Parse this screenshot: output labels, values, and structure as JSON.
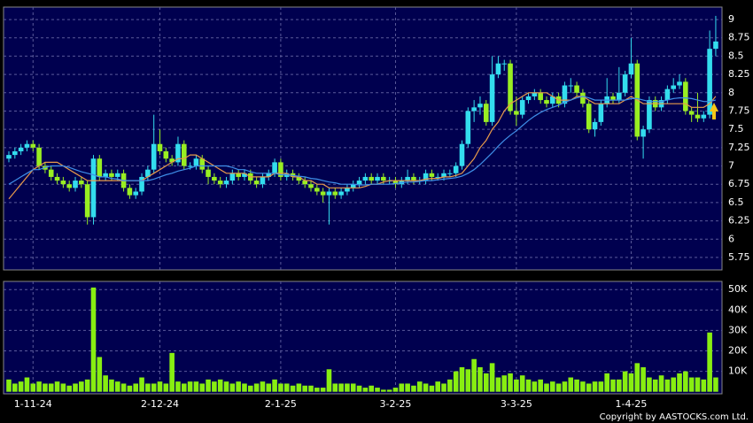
{
  "chart_data": [
    {
      "type": "candlestick",
      "categories": [
        null,
        null,
        null,
        null,
        "1-11-24",
        null,
        null,
        null,
        null,
        null,
        null,
        null,
        null,
        null,
        null,
        null,
        null,
        null,
        null,
        null,
        null,
        null,
        null,
        null,
        null,
        "2-12-24",
        null,
        null,
        null,
        null,
        null,
        null,
        null,
        null,
        null,
        null,
        null,
        null,
        null,
        null,
        null,
        null,
        null,
        null,
        null,
        "2-1-25",
        null,
        null,
        null,
        null,
        null,
        null,
        null,
        null,
        null,
        null,
        null,
        null,
        null,
        null,
        null,
        null,
        null,
        null,
        "3-2-25",
        null,
        null,
        null,
        null,
        null,
        null,
        null,
        null,
        null,
        null,
        null,
        null,
        null,
        null,
        null,
        null,
        null,
        null,
        null,
        "3-3-25",
        null,
        null,
        null,
        null,
        null,
        null,
        null,
        null,
        null,
        null,
        null,
        null,
        null,
        null,
        null,
        null,
        null,
        null,
        "1-4-25",
        null,
        null,
        null,
        null,
        null,
        null,
        null,
        null,
        null,
        null,
        null,
        null,
        null,
        null
      ],
      "open": [
        7.1,
        7.15,
        7.2,
        7.25,
        7.3,
        7.25,
        7.0,
        6.95,
        6.85,
        6.8,
        6.75,
        6.7,
        6.8,
        6.75,
        6.3,
        7.1,
        6.85,
        6.9,
        6.85,
        6.9,
        6.7,
        6.6,
        6.65,
        6.85,
        6.95,
        7.3,
        7.2,
        7.1,
        7.05,
        7.3,
        7.0,
        7.0,
        7.1,
        6.95,
        6.85,
        6.8,
        6.75,
        6.8,
        6.9,
        6.85,
        6.9,
        6.8,
        6.75,
        6.85,
        6.9,
        7.05,
        6.85,
        6.9,
        6.85,
        6.8,
        6.75,
        6.7,
        6.65,
        6.6,
        6.65,
        6.6,
        6.65,
        6.7,
        6.75,
        6.8,
        6.85,
        6.8,
        6.85,
        6.8,
        6.8,
        6.75,
        6.8,
        6.85,
        6.8,
        6.8,
        6.9,
        6.85,
        6.85,
        6.9,
        6.9,
        7.0,
        7.3,
        7.75,
        7.8,
        7.85,
        7.6,
        8.25,
        8.4,
        8.4,
        7.75,
        7.7,
        7.9,
        7.95,
        8.0,
        7.9,
        7.85,
        7.95,
        7.85,
        8.1,
        8.1,
        8.0,
        7.85,
        7.5,
        7.6,
        7.85,
        7.95,
        7.9,
        8.0,
        8.25,
        8.4,
        7.4,
        7.5,
        7.9,
        7.8,
        7.9,
        8.05,
        8.1,
        8.15,
        7.75,
        7.7,
        7.65,
        7.7,
        8.6
      ],
      "high": [
        7.2,
        7.25,
        7.3,
        7.35,
        7.35,
        7.3,
        7.05,
        7.0,
        6.9,
        6.85,
        6.8,
        6.85,
        6.85,
        6.8,
        7.15,
        7.15,
        6.95,
        6.95,
        6.95,
        6.95,
        6.75,
        6.7,
        6.9,
        7.0,
        7.7,
        7.5,
        7.25,
        7.15,
        7.4,
        7.35,
        7.05,
        7.15,
        7.15,
        7.0,
        6.9,
        6.85,
        6.85,
        6.95,
        6.95,
        6.95,
        6.95,
        6.85,
        6.9,
        6.95,
        7.1,
        7.1,
        6.95,
        6.95,
        6.9,
        6.85,
        6.8,
        6.75,
        6.7,
        6.7,
        6.7,
        6.7,
        6.75,
        6.8,
        6.85,
        6.9,
        6.9,
        6.9,
        6.9,
        6.85,
        6.85,
        6.85,
        6.95,
        6.9,
        6.85,
        6.95,
        6.95,
        6.9,
        6.95,
        6.95,
        7.05,
        7.35,
        7.8,
        7.9,
        7.95,
        7.9,
        8.5,
        8.5,
        8.45,
        8.45,
        7.95,
        7.95,
        8.0,
        8.05,
        8.05,
        7.95,
        8.0,
        8.0,
        8.15,
        8.2,
        8.15,
        8.05,
        7.9,
        7.65,
        7.9,
        8.2,
        8.0,
        8.35,
        8.3,
        8.75,
        8.45,
        7.55,
        7.95,
        7.95,
        7.95,
        8.1,
        8.2,
        8.25,
        8.2,
        7.8,
        8.0,
        7.75,
        8.85,
        9.05
      ],
      "low": [
        7.05,
        7.1,
        7.15,
        7.2,
        7.2,
        6.95,
        6.9,
        6.8,
        6.75,
        6.7,
        6.65,
        6.65,
        6.7,
        6.2,
        6.2,
        6.8,
        6.8,
        6.8,
        6.8,
        6.65,
        6.55,
        6.55,
        6.6,
        6.8,
        6.9,
        7.15,
        7.05,
        7.0,
        7.0,
        6.95,
        6.95,
        6.95,
        6.9,
        6.75,
        6.75,
        6.7,
        6.7,
        6.75,
        6.8,
        6.8,
        6.75,
        6.7,
        6.7,
        6.8,
        6.85,
        6.8,
        6.8,
        6.8,
        6.75,
        6.7,
        6.65,
        6.6,
        6.5,
        6.2,
        6.55,
        6.55,
        6.6,
        6.65,
        6.7,
        6.75,
        6.75,
        6.75,
        6.75,
        6.75,
        6.7,
        6.7,
        6.75,
        6.75,
        6.75,
        6.75,
        6.8,
        6.8,
        6.8,
        6.85,
        6.85,
        6.95,
        7.25,
        7.6,
        7.7,
        7.55,
        7.55,
        8.2,
        8.3,
        7.7,
        7.55,
        7.65,
        7.85,
        7.9,
        7.85,
        7.8,
        7.8,
        7.8,
        7.8,
        8.0,
        7.95,
        7.8,
        7.45,
        7.4,
        7.55,
        7.8,
        7.85,
        7.85,
        7.95,
        8.2,
        7.35,
        7.1,
        7.45,
        7.75,
        7.75,
        7.85,
        8.0,
        8.05,
        7.7,
        7.6,
        7.6,
        7.6,
        7.65,
        8.5
      ],
      "close": [
        7.15,
        7.2,
        7.25,
        7.3,
        7.25,
        7.0,
        6.95,
        6.85,
        6.8,
        6.75,
        6.7,
        6.8,
        6.75,
        6.3,
        7.1,
        6.85,
        6.9,
        6.85,
        6.9,
        6.7,
        6.6,
        6.65,
        6.85,
        6.95,
        7.3,
        7.2,
        7.1,
        7.05,
        7.3,
        7.0,
        7.0,
        7.1,
        6.95,
        6.85,
        6.8,
        6.75,
        6.8,
        6.9,
        6.85,
        6.9,
        6.8,
        6.75,
        6.85,
        6.9,
        7.05,
        6.85,
        6.9,
        6.85,
        6.8,
        6.75,
        6.7,
        6.65,
        6.6,
        6.65,
        6.6,
        6.65,
        6.7,
        6.75,
        6.8,
        6.85,
        6.8,
        6.85,
        6.8,
        6.8,
        6.75,
        6.8,
        6.85,
        6.8,
        6.8,
        6.9,
        6.85,
        6.85,
        6.9,
        6.9,
        7.0,
        7.3,
        7.75,
        7.8,
        7.85,
        7.6,
        8.25,
        8.4,
        8.4,
        7.75,
        7.7,
        7.9,
        7.95,
        8.0,
        7.9,
        7.85,
        7.95,
        7.85,
        8.1,
        8.1,
        8.0,
        7.85,
        7.5,
        7.6,
        7.85,
        7.95,
        7.9,
        8.0,
        8.25,
        8.4,
        7.4,
        7.5,
        7.9,
        7.8,
        7.9,
        8.05,
        8.1,
        8.15,
        7.75,
        7.7,
        7.65,
        7.7,
        8.6,
        8.7
      ],
      "up_color": "#33ddee",
      "down_color": "#99ee22",
      "series": [
        {
          "color": "#e89a4a",
          "values": [
            6.55,
            6.65,
            6.75,
            6.85,
            6.95,
            7.0,
            7.05,
            7.05,
            7.05,
            7.0,
            6.95,
            6.9,
            6.85,
            6.8,
            6.8,
            6.8,
            6.8,
            6.8,
            6.8,
            6.8,
            6.8,
            6.8,
            6.8,
            6.85,
            6.9,
            6.95,
            7.0,
            7.05,
            7.1,
            7.1,
            7.15,
            7.15,
            7.1,
            7.05,
            7.0,
            6.95,
            6.9,
            6.9,
            6.9,
            6.9,
            6.85,
            6.85,
            6.85,
            6.85,
            6.9,
            6.9,
            6.9,
            6.85,
            6.85,
            6.8,
            6.8,
            6.75,
            6.75,
            6.7,
            6.7,
            6.7,
            6.7,
            6.7,
            6.7,
            6.72,
            6.75,
            6.75,
            6.78,
            6.8,
            6.8,
            6.8,
            6.8,
            6.8,
            6.8,
            6.82,
            6.83,
            6.83,
            6.85,
            6.85,
            6.87,
            6.9,
            7.0,
            7.1,
            7.25,
            7.35,
            7.5,
            7.6,
            7.75,
            7.85,
            7.9,
            7.95,
            8.0,
            8.0,
            8.0,
            8.0,
            7.95,
            7.9,
            7.9,
            7.9,
            7.95,
            7.95,
            7.9,
            7.85,
            7.85,
            7.85,
            7.85,
            7.85,
            7.9,
            7.95,
            7.9,
            7.85,
            7.85,
            7.85,
            7.85,
            7.85,
            7.85,
            7.85,
            7.85,
            7.8,
            7.8,
            7.8,
            7.85,
            7.95
          ]
        },
        {
          "color": "#3f8fe8",
          "values": [
            6.75,
            6.8,
            6.85,
            6.9,
            6.95,
            6.95,
            6.98,
            7.0,
            7.0,
            7.0,
            6.98,
            6.95,
            6.92,
            6.9,
            6.88,
            6.85,
            6.85,
            6.83,
            6.82,
            6.8,
            6.8,
            6.8,
            6.8,
            6.8,
            6.82,
            6.85,
            6.88,
            6.9,
            6.93,
            6.95,
            6.97,
            7.0,
            7.0,
            7.0,
            7.0,
            7.0,
            7.0,
            6.98,
            6.95,
            6.95,
            6.92,
            6.9,
            6.9,
            6.9,
            6.9,
            6.88,
            6.88,
            6.87,
            6.86,
            6.85,
            6.83,
            6.82,
            6.8,
            6.78,
            6.77,
            6.75,
            6.75,
            6.75,
            6.74,
            6.74,
            6.75,
            6.75,
            6.75,
            6.75,
            6.76,
            6.77,
            6.78,
            6.78,
            6.79,
            6.8,
            6.8,
            6.81,
            6.82,
            6.83,
            6.84,
            6.86,
            6.9,
            6.95,
            7.02,
            7.1,
            7.18,
            7.27,
            7.35,
            7.42,
            7.48,
            7.55,
            7.62,
            7.68,
            7.73,
            7.77,
            7.8,
            7.83,
            7.87,
            7.9,
            7.93,
            7.95,
            7.93,
            7.9,
            7.9,
            7.9,
            7.9,
            7.9,
            7.9,
            7.92,
            7.92,
            7.9,
            7.88,
            7.88,
            7.88,
            7.9,
            7.92,
            7.93,
            7.93,
            7.92,
            7.9,
            7.88,
            7.88,
            7.9
          ]
        }
      ],
      "ylim": [
        5.58,
        9.17
      ],
      "yticks": [
        5.75,
        6,
        6.25,
        6.5,
        6.75,
        7,
        7.25,
        7.5,
        7.75,
        8,
        8.25,
        8.5,
        8.75,
        9
      ],
      "grid": true
    },
    {
      "type": "bar",
      "values": [
        6000,
        4000,
        5000,
        7000,
        4000,
        5000,
        4000,
        4000,
        5000,
        4000,
        3000,
        4000,
        5000,
        6000,
        51000,
        17000,
        8000,
        6000,
        5000,
        4000,
        3000,
        4000,
        7000,
        4000,
        4000,
        5000,
        4000,
        19000,
        5000,
        4000,
        5000,
        5000,
        4000,
        6000,
        5000,
        6000,
        5000,
        4000,
        5000,
        4000,
        3000,
        4000,
        5000,
        4000,
        6000,
        4000,
        4000,
        3000,
        4000,
        3000,
        3000,
        2000,
        2000,
        11000,
        4000,
        4000,
        4000,
        4000,
        3000,
        2000,
        3000,
        2000,
        1000,
        1000,
        2000,
        4000,
        4000,
        3000,
        5000,
        4000,
        3000,
        5000,
        4000,
        6000,
        10000,
        12000,
        11000,
        16000,
        12000,
        9000,
        14000,
        7000,
        8000,
        9000,
        6000,
        8000,
        6000,
        5000,
        6000,
        4000,
        5000,
        4000,
        5000,
        7000,
        6000,
        5000,
        4000,
        5000,
        5000,
        9000,
        6000,
        6000,
        10000,
        9000,
        14000,
        12000,
        7000,
        6000,
        8000,
        6000,
        7000,
        9000,
        10000,
        7000,
        7000,
        6000,
        29000,
        7000
      ],
      "color": "#88ee11",
      "ylim": [
        -1000,
        54000
      ],
      "yticks": [
        {
          "value": 10000,
          "label": "10K"
        },
        {
          "value": 20000,
          "label": "20K"
        },
        {
          "value": 30000,
          "label": "30K"
        },
        {
          "value": 40000,
          "label": "40K"
        },
        {
          "value": 50000,
          "label": "50K"
        }
      ],
      "grid": true
    }
  ],
  "footer": "Copyright by AASTOCKS.com Ltd."
}
